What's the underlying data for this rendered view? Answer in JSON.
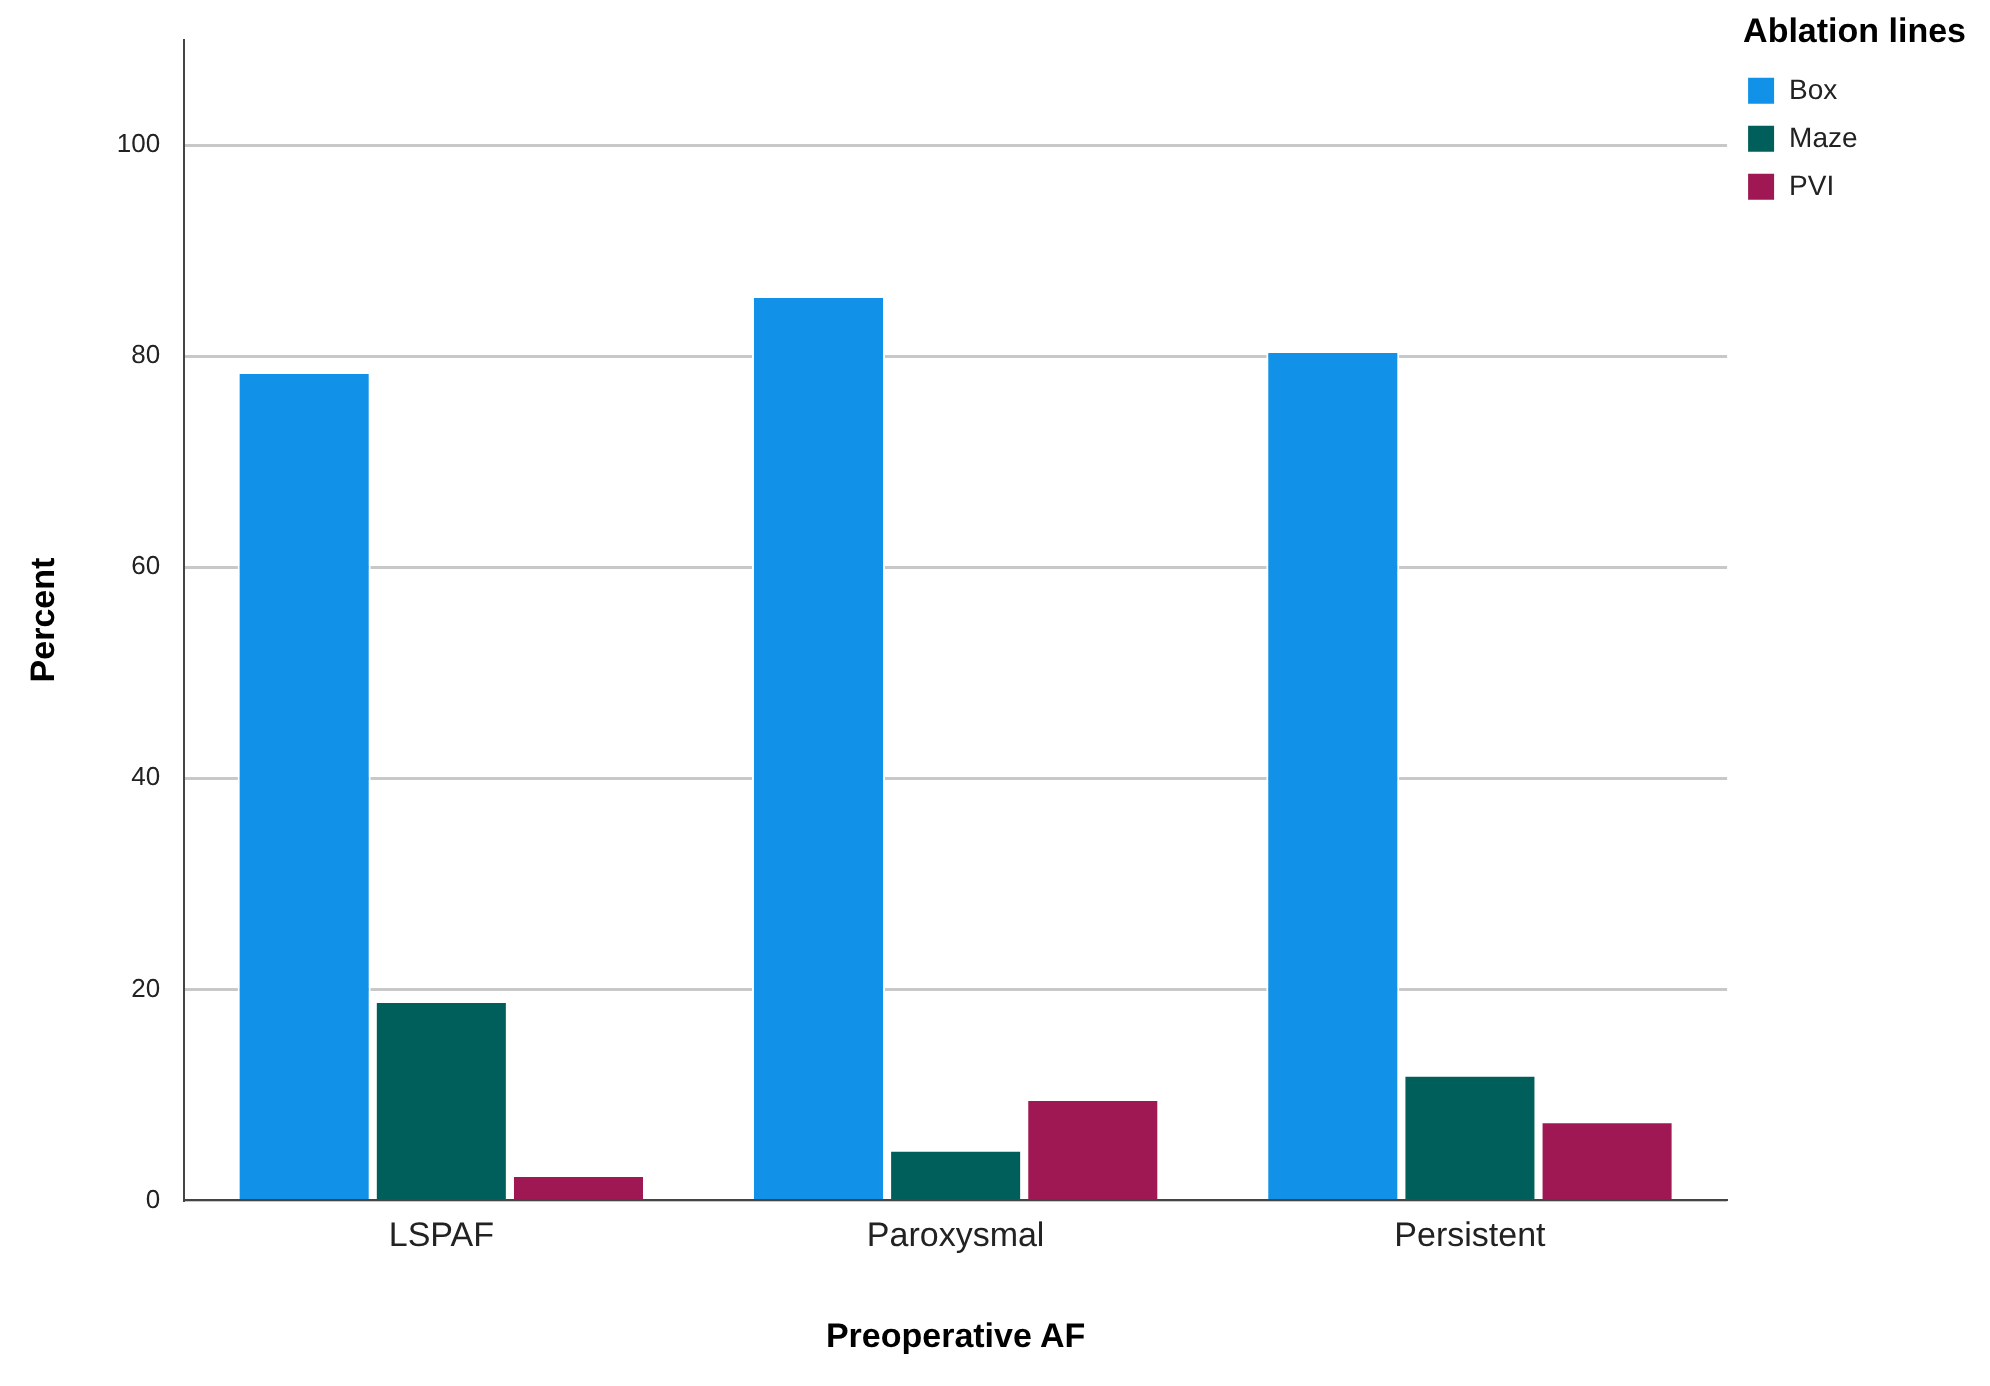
{
  "chart_data": {
    "type": "bar",
    "xlabel": "Preoperative AF",
    "ylabel": "Percent",
    "legend_title": "Ablation lines",
    "categories": [
      "LSPAF",
      "Paroxysmal",
      "Persistent"
    ],
    "series": [
      {
        "name": "Box",
        "color": "#1192e8",
        "values": [
          78.5,
          85.7,
          80.5
        ]
      },
      {
        "name": "Maze",
        "color": "#005f5a",
        "values": [
          18.9,
          4.8,
          11.9
        ]
      },
      {
        "name": "PVI",
        "color": "#9f1853",
        "values": [
          2.4,
          9.6,
          7.5
        ]
      }
    ],
    "ylim": [
      0,
      110
    ],
    "yticks": [
      0,
      20,
      40,
      60,
      80,
      100
    ],
    "grid": "y",
    "legend": "top right"
  }
}
